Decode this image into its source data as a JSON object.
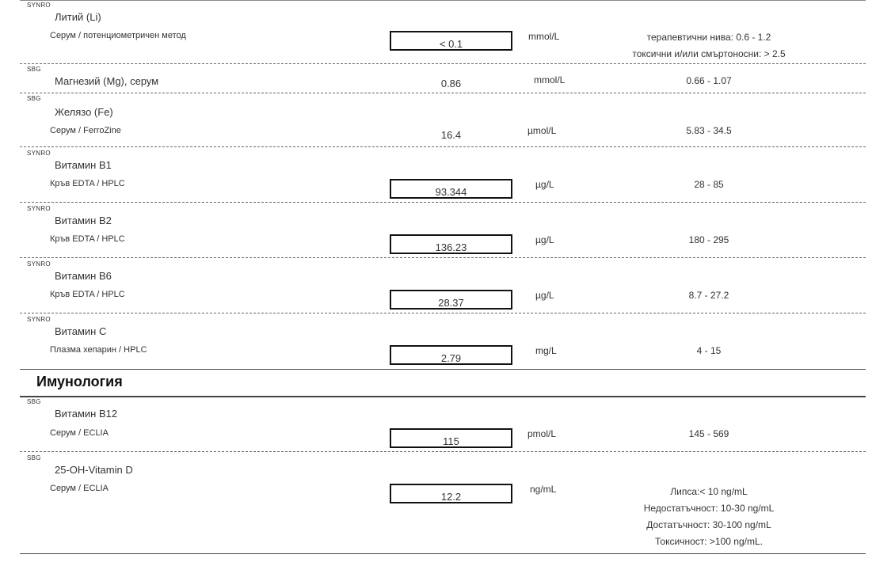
{
  "tests": {
    "lithium": {
      "lab": "SYNRO",
      "name": "Литий (Li)",
      "method": "Серум / потенциометричен метод",
      "value": "< 0.1",
      "unit": "mmol/L",
      "ref1": "терапевтични нива: 0.6 - 1.2",
      "ref2": "токсични и/или смъртоносни:  > 2.5"
    },
    "magnesium": {
      "lab": "SBG",
      "name": "Магнезий (Mg), серум",
      "value": "0.86",
      "unit": "mmol/L",
      "ref": "0.66 - 1.07"
    },
    "iron": {
      "lab": "SBG",
      "name": "Желязо (Fe)",
      "method": "Серум / FerroZine",
      "value": "16.4",
      "unit": "µmol/L",
      "ref": "5.83 - 34.5"
    },
    "b1": {
      "lab": "SYNRO",
      "name": "Витамин B1",
      "method": "Кръв EDTA / HPLC",
      "value": "93.344",
      "unit": "µg/L",
      "ref": "28 - 85"
    },
    "b2": {
      "lab": "SYNRO",
      "name": "Витамин B2",
      "method": "Кръв EDTA / HPLC",
      "value": "136.23",
      "unit": "µg/L",
      "ref": "180 - 295"
    },
    "b6": {
      "lab": "SYNRO",
      "name": "Витамин B6",
      "method": "Кръв EDTA / HPLC",
      "value": "28.37",
      "unit": "µg/L",
      "ref": "8.7 - 27.2"
    },
    "vitc": {
      "lab": "SYNRO",
      "name": "Витамин C",
      "method": "Плазма хепарин / HPLC",
      "value": "2.79",
      "unit": "mg/L",
      "ref": "4 - 15"
    },
    "b12": {
      "lab": "SBG",
      "name": "Витамин B12",
      "method": "Серум / ECLIA",
      "value": "115",
      "unit": "pmol/L",
      "ref": "145 - 569"
    },
    "vitd": {
      "lab": "SBG",
      "name": "25-OH-Vitamin D",
      "method": "Серум / ECLIA",
      "value": "12.2",
      "unit": "ng/mL",
      "ref1": "Липса:< 10 ng/mL",
      "ref2": "Недостатъчност: 10-30 ng/mL",
      "ref3": "Достатъчност:  30-100 ng/mL",
      "ref4": "Токсичност:   >100 ng/mL."
    }
  },
  "section_immunology": "Имунология"
}
